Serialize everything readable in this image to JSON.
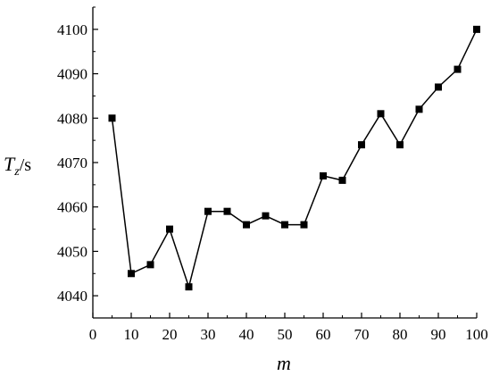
{
  "chart_data": {
    "type": "line",
    "title": "",
    "xlabel": "m",
    "ylabel": {
      "main": "T",
      "sub": "z",
      "unit": "/s"
    },
    "xlim": [
      0,
      100
    ],
    "ylim": [
      4035,
      4105
    ],
    "xticks": [
      0,
      10,
      20,
      30,
      40,
      50,
      60,
      70,
      80,
      90,
      100
    ],
    "yticks": [
      4040,
      4050,
      4060,
      4070,
      4080,
      4090,
      4100
    ],
    "grid": false,
    "series": [
      {
        "marker": "square",
        "color": "#000000",
        "x": [
          5,
          10,
          15,
          20,
          25,
          30,
          35,
          40,
          45,
          50,
          55,
          60,
          65,
          70,
          75,
          80,
          85,
          90,
          95,
          100
        ],
        "y": [
          4080,
          4045,
          4047,
          4055,
          4042,
          4059,
          4059,
          4056,
          4058,
          4056,
          4056,
          4067,
          4066,
          4074,
          4081,
          4074,
          4082,
          4087,
          4091,
          4100
        ]
      }
    ]
  }
}
